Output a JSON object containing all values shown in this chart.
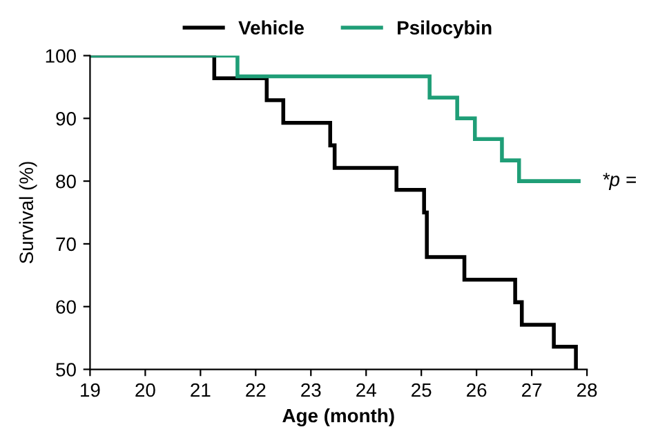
{
  "chart_data": {
    "type": "step",
    "xlabel": "Age (month)",
    "ylabel": "Survival (%)",
    "xlim": [
      19,
      28
    ],
    "ylim": [
      50,
      100
    ],
    "xticks": [
      19,
      20,
      21,
      22,
      23,
      24,
      25,
      26,
      27,
      28
    ],
    "yticks": [
      50,
      60,
      70,
      80,
      90,
      100
    ],
    "grid": false,
    "legend": "top",
    "line_style": "solid",
    "marker": "none",
    "series": [
      {
        "name": "Vehicle",
        "color": "#000000",
        "x": [
          19,
          21.25,
          22.2,
          22.5,
          23.35,
          23.43,
          24.55,
          25.05,
          25.1,
          25.78,
          26.7,
          26.82,
          27.4,
          27.8
        ],
        "values": [
          100,
          96.4,
          92.9,
          89.3,
          85.7,
          82.1,
          78.6,
          75,
          67.9,
          64.3,
          60.7,
          57.1,
          53.6,
          50
        ]
      },
      {
        "name": "Psilocybin",
        "color": "#1f9e77",
        "x": [
          19,
          21.67,
          25.15,
          25.65,
          25.97,
          26.46,
          26.77,
          27.85
        ],
        "values": [
          100,
          96.7,
          93.3,
          90,
          86.7,
          83.3,
          80,
          80
        ]
      }
    ],
    "annotations": [
      "*p ="
    ]
  }
}
